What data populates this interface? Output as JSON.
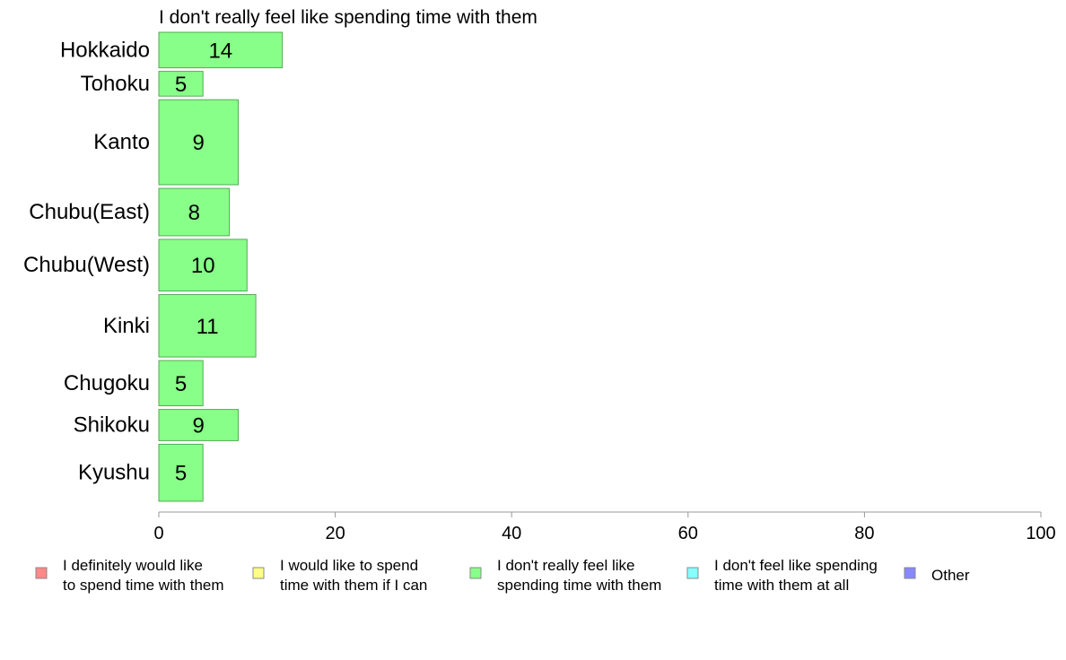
{
  "chart_data": {
    "type": "bar",
    "orientation": "horizontal",
    "title": "I don't really feel like spending time with them",
    "categories": [
      "Hokkaido",
      "Tohoku",
      "Kanto",
      "Chubu(East)",
      "Chubu(West)",
      "Kinki",
      "Chugoku",
      "Shikoku",
      "Kyushu"
    ],
    "values": [
      14,
      5,
      9,
      8,
      10,
      11,
      5,
      9,
      5
    ],
    "value_labels": [
      "14",
      "5",
      "9",
      "8",
      "10",
      "11",
      "5",
      "9",
      "5"
    ],
    "relative_bar_heights": [
      0.066,
      0.046,
      0.158,
      0.088,
      0.096,
      0.116,
      0.084,
      0.058,
      0.106
    ],
    "xlim": [
      0,
      100
    ],
    "xticks": [
      0,
      20,
      40,
      60,
      80,
      100
    ],
    "xtick_labels": [
      "0",
      "20",
      "40",
      "60",
      "80",
      "100"
    ],
    "grid": false,
    "bar_color": "#88ff88",
    "bar_edge_color": "#55aa55",
    "axis_color": "#999999",
    "legend_position": "bottom",
    "legend": [
      {
        "lines": [
          "I definitely would like",
          "to spend time with them"
        ],
        "color": "#ff8888"
      },
      {
        "lines": [
          "I would like to spend",
          "time with them if I can"
        ],
        "color": "#ffff88"
      },
      {
        "lines": [
          "I don't really feel like",
          "spending time with them"
        ],
        "color": "#88ff88"
      },
      {
        "lines": [
          "I don't feel like spending",
          "time with them at all"
        ],
        "color": "#88ffff"
      },
      {
        "lines": [
          "Other"
        ],
        "color": "#8888ff"
      }
    ]
  }
}
